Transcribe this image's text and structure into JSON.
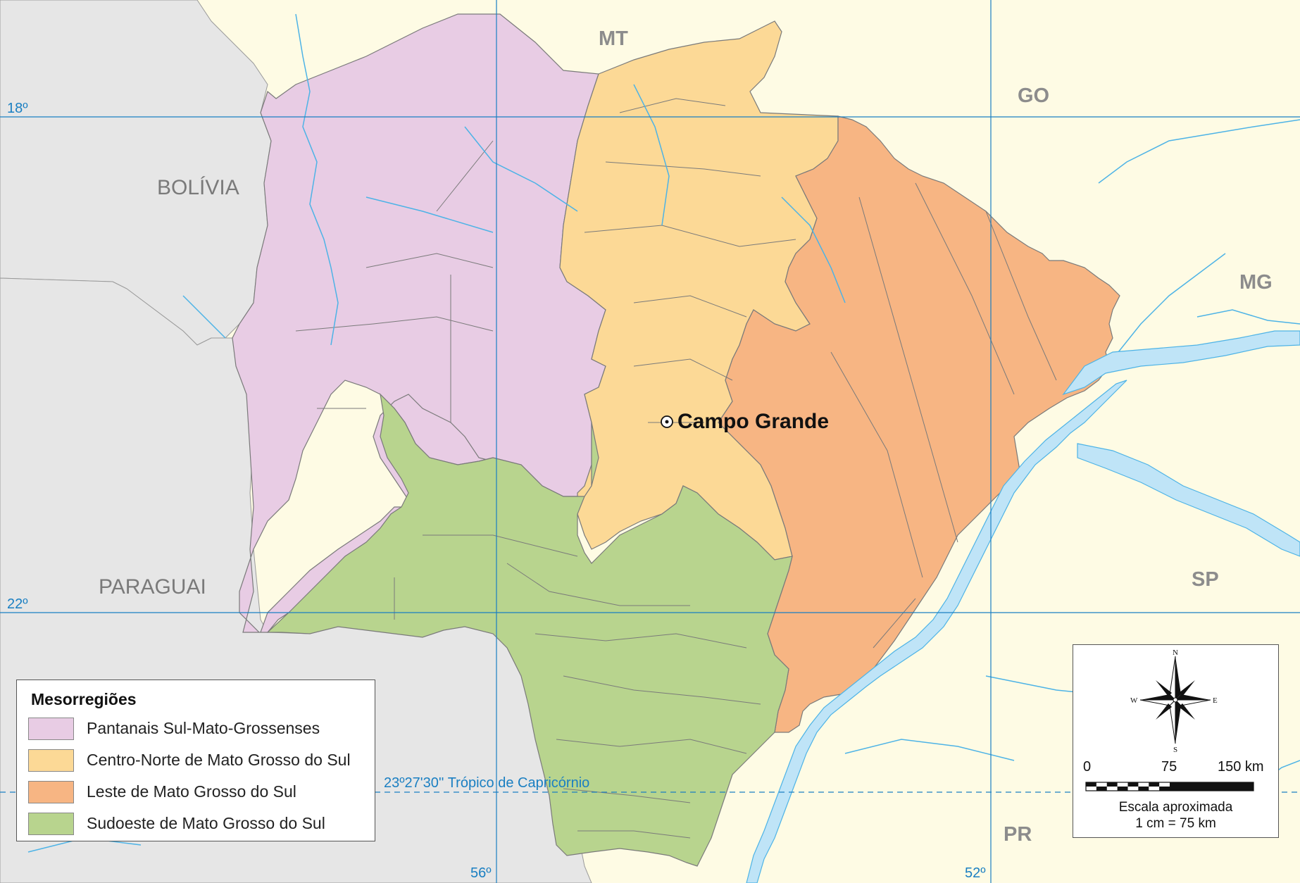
{
  "map": {
    "countries": {
      "bolivia": "BOLÍVIA",
      "paraguai": "PARAGUAI"
    },
    "states": {
      "mt": "MT",
      "go": "GO",
      "mg": "MG",
      "sp": "SP",
      "pr": "PR"
    },
    "city": {
      "name": "Campo Grande"
    },
    "latitudes": {
      "lat18": "18º",
      "lat22": "22º"
    },
    "longitudes": {
      "lon56": "56º",
      "lon52": "52º"
    },
    "tropic": "23º27'30'' Trópico de Capricórnio"
  },
  "legend": {
    "title": "Mesorregiões",
    "items": [
      {
        "label": "Pantanais Sul-Mato-Grossenses",
        "color": "#e8cce4"
      },
      {
        "label": "Centro-Norte de Mato Grosso do Sul",
        "color": "#fcd996"
      },
      {
        "label": "Leste de Mato Grosso do Sul",
        "color": "#f7b583"
      },
      {
        "label": "Sudoeste de Mato Grosso do Sul",
        "color": "#b8d48e"
      }
    ]
  },
  "scale": {
    "ticks": [
      "0",
      "75",
      "150 km"
    ],
    "caption_line1": "Escala aproximada",
    "caption_line2": "1 cm = 75 km"
  },
  "compass": {
    "n": "N",
    "s": "S",
    "e": "E",
    "w": "W"
  },
  "colors": {
    "foreign": "#e6e6e6",
    "brazil": "#fefbe4",
    "water": "#bfe4f7",
    "grid": "#1a7fc2"
  }
}
